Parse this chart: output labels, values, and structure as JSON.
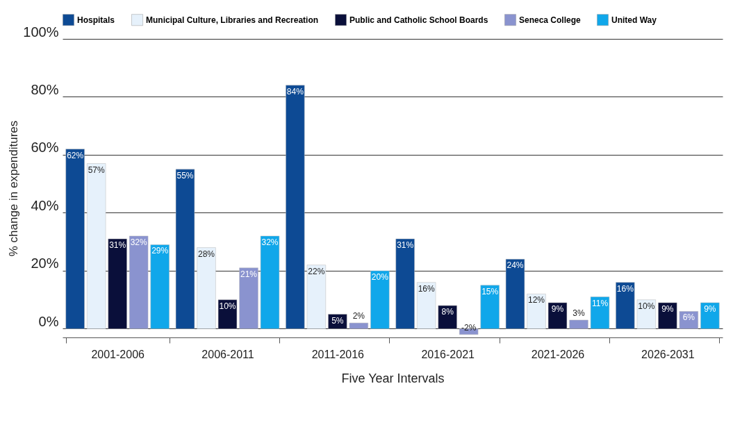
{
  "chart_data": {
    "type": "bar",
    "xlabel": "Five Year Intervals",
    "ylabel": "% change in expenditures",
    "categories": [
      "2001-2006",
      "2006-2011",
      "2011-2016",
      "2016-2021",
      "2021-2026",
      "2026-2031"
    ],
    "series": [
      {
        "name": "Hospitals",
        "color": "#0d4a94",
        "values": [
          62,
          55,
          84,
          31,
          24,
          16
        ],
        "value_labels": [
          "62%",
          "55%",
          "84%",
          "31%",
          "24%",
          "16%"
        ]
      },
      {
        "name": "Municipal Culture, Libraries and Recreation",
        "color": "#e6f1fb",
        "values": [
          57,
          28,
          22,
          16,
          12,
          10
        ],
        "value_labels": [
          "57%",
          "28%",
          "22%",
          "16%",
          "12%",
          "10%"
        ]
      },
      {
        "name": "Public and Catholic School Boards",
        "color": "#0a0f3a",
        "values": [
          31,
          10,
          5,
          8,
          9,
          9
        ],
        "value_labels": [
          "31%",
          "10%",
          "5%",
          "8%",
          "9%",
          "9%"
        ]
      },
      {
        "name": "Seneca College",
        "color": "#8a93cf",
        "values": [
          32,
          21,
          2,
          -2,
          3,
          6
        ],
        "value_labels": [
          "32%",
          "21%",
          "2%",
          "-2%",
          "3%",
          "6%"
        ]
      },
      {
        "name": "United Way",
        "color": "#10a7ea",
        "values": [
          29,
          32,
          20,
          15,
          11,
          9
        ],
        "value_labels": [
          "29%",
          "32%",
          "20%",
          "15%",
          "11%",
          "9%"
        ]
      }
    ],
    "ylim": [
      -3,
      100
    ],
    "yticks": [
      {
        "value": 0,
        "label": "0%"
      },
      {
        "value": 20,
        "label": "20%"
      },
      {
        "value": 40,
        "label": "40%"
      },
      {
        "value": 60,
        "label": "60%"
      },
      {
        "value": 80,
        "label": "80%"
      },
      {
        "value": 100,
        "label": "100%"
      }
    ],
    "grid": "y",
    "legend": "top"
  }
}
